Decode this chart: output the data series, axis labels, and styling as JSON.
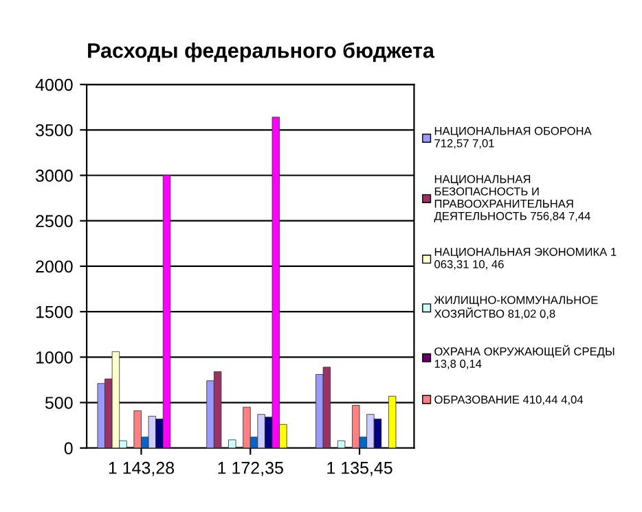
{
  "chart_data": {
    "type": "bar",
    "title": "Расходы федерального бюджета",
    "categories": [
      "1 143,28",
      "1 172,35",
      "1 135,45"
    ],
    "series": [
      {
        "name": "НАЦИОНАЛЬНАЯ ОБОРОНА\n712,57 7,01",
        "color": "#9999ff",
        "values": [
          710,
          740,
          810
        ]
      },
      {
        "name": "НАЦИОНАЛЬНАЯ\nБЕЗОПАСНОСТЬ И\nПРАВООХРАНИТЕЛЬНАЯ\nДЕЯТЕЛЬНОСТЬ 756,84 7,44",
        "color": "#993366",
        "values": [
          760,
          840,
          890
        ]
      },
      {
        "name": "НАЦИОНАЛЬНАЯ ЭКОНОМИКА 1\n063,31 10, 46",
        "color": "#ffffcc",
        "values": [
          1060,
          null,
          null
        ]
      },
      {
        "name": "ЖИЛИЩНО-КОММУНАЛЬНОЕ\nХОЗЯЙСТВО 81,02 0,8",
        "color": "#ccffff",
        "values": [
          80,
          90,
          80
        ]
      },
      {
        "name": "ОХРАНА ОКРУЖАЮЩЕЙ СРЕДЫ\n13,8 0,14",
        "color": "#660066",
        "values": [
          10,
          10,
          10
        ]
      },
      {
        "name": "ОБРАЗОВАНИЕ 410,44 4,04",
        "color": "#ff8080",
        "values": [
          410,
          450,
          470
        ]
      },
      {
        "color": "#0066cc",
        "values": [
          120,
          120,
          120
        ]
      },
      {
        "color": "#ccccff",
        "values": [
          350,
          370,
          370
        ]
      },
      {
        "color": "#000080",
        "values": [
          320,
          340,
          320
        ]
      },
      {
        "color": "#ff00ff",
        "values": [
          3000,
          3640,
          null
        ]
      },
      {
        "color": "#ffff00",
        "values": [
          null,
          260,
          570
        ]
      },
      {
        "color": "#00ffff",
        "values": [
          null,
          null,
          null
        ]
      }
    ],
    "ylim": [
      0,
      4000
    ],
    "yticks": [
      0,
      500,
      1000,
      1500,
      2000,
      2500,
      3000,
      3500,
      4000
    ],
    "grid": "y",
    "legend": "right"
  }
}
